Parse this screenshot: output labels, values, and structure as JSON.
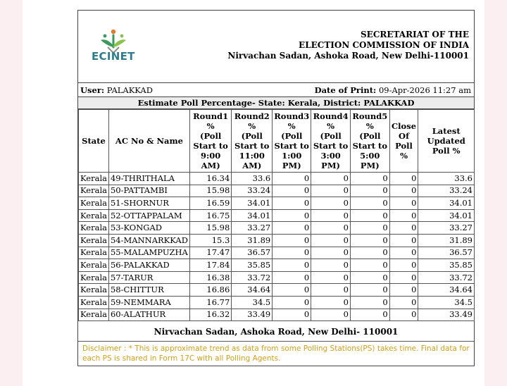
{
  "header": {
    "logo_text": "ECINET",
    "org_line1": "SECRETARIAT OF THE",
    "org_line2": "ELECTION COMMISSION OF INDIA",
    "org_line3": "Nirvachan Sadan, Ashoka Road, New Delhi-110001"
  },
  "userbar": {
    "user_label": "User:",
    "user_value": "PALAKKAD",
    "print_label": "Date of Print:",
    "print_value": "09-Apr-2026 11:27 am"
  },
  "title": "Estimate Poll Percentage- State: Kerala, District: PALAKKAD",
  "columns": {
    "state": "State",
    "ac": "AC No & Name",
    "r1": [
      "Round1",
      "%",
      "(Poll",
      "Start to",
      "9:00 AM)"
    ],
    "r2": [
      "Round2",
      "%",
      "(Poll",
      "Start to",
      "11:00",
      "AM)"
    ],
    "r3": [
      "Round3",
      "%",
      "(Poll",
      "Start to",
      "1:00",
      "PM)"
    ],
    "r4": [
      "Round4",
      "%",
      "(Poll",
      "Start to",
      "3:00",
      "PM)"
    ],
    "r5": [
      "Round5",
      "%",
      "(Poll",
      "Start to",
      "5:00",
      "PM)"
    ],
    "close": [
      "Close",
      "Of",
      "Poll %"
    ],
    "latest": [
      "Latest",
      "Updated",
      "Poll %"
    ]
  },
  "rows": [
    {
      "state": "Kerala",
      "ac": "49-THRITHALA",
      "r1": "16.34",
      "r2": "33.6",
      "r3": "0",
      "r4": "0",
      "r5": "0",
      "close": "0",
      "latest": "33.6"
    },
    {
      "state": "Kerala",
      "ac": "50-PATTAMBI",
      "r1": "15.98",
      "r2": "33.24",
      "r3": "0",
      "r4": "0",
      "r5": "0",
      "close": "0",
      "latest": "33.24"
    },
    {
      "state": "Kerala",
      "ac": "51-SHORNUR",
      "r1": "16.59",
      "r2": "34.01",
      "r3": "0",
      "r4": "0",
      "r5": "0",
      "close": "0",
      "latest": "34.01"
    },
    {
      "state": "Kerala",
      "ac": "52-OTTAPPALAM",
      "r1": "16.75",
      "r2": "34.01",
      "r3": "0",
      "r4": "0",
      "r5": "0",
      "close": "0",
      "latest": "34.01"
    },
    {
      "state": "Kerala",
      "ac": "53-KONGAD",
      "r1": "15.98",
      "r2": "33.27",
      "r3": "0",
      "r4": "0",
      "r5": "0",
      "close": "0",
      "latest": "33.27"
    },
    {
      "state": "Kerala",
      "ac": "54-MANNARKKAD",
      "r1": "15.3",
      "r2": "31.89",
      "r3": "0",
      "r4": "0",
      "r5": "0",
      "close": "0",
      "latest": "31.89"
    },
    {
      "state": "Kerala",
      "ac": "55-MALAMPUZHA",
      "r1": "17.47",
      "r2": "36.57",
      "r3": "0",
      "r4": "0",
      "r5": "0",
      "close": "0",
      "latest": "36.57"
    },
    {
      "state": "Kerala",
      "ac": "56-PALAKKAD",
      "r1": "17.84",
      "r2": "35.85",
      "r3": "0",
      "r4": "0",
      "r5": "0",
      "close": "0",
      "latest": "35.85"
    },
    {
      "state": "Kerala",
      "ac": "57-TARUR",
      "r1": "16.38",
      "r2": "33.72",
      "r3": "0",
      "r4": "0",
      "r5": "0",
      "close": "0",
      "latest": "33.72"
    },
    {
      "state": "Kerala",
      "ac": "58-CHITTUR",
      "r1": "16.86",
      "r2": "34.64",
      "r3": "0",
      "r4": "0",
      "r5": "0",
      "close": "0",
      "latest": "34.64"
    },
    {
      "state": "Kerala",
      "ac": "59-NEMMARA",
      "r1": "16.77",
      "r2": "34.5",
      "r3": "0",
      "r4": "0",
      "r5": "0",
      "close": "0",
      "latest": "34.5"
    },
    {
      "state": "Kerala",
      "ac": "60-ALATHUR",
      "r1": "16.32",
      "r2": "33.49",
      "r3": "0",
      "r4": "0",
      "r5": "0",
      "close": "0",
      "latest": "33.49"
    }
  ],
  "footer_address": "Nirvachan Sadan, Ashoka Road, New Delhi- 110001",
  "disclaimer": "Disclaimer : * This is approximate trend as data from some Polling Stations(PS) takes time. Final data for each PS is shared in Form 17C with all Polling Agents.",
  "colors": {
    "disclaimer": "#d4a017",
    "logo_text": "#2e7d8c",
    "page_background": "#fbeff1"
  }
}
